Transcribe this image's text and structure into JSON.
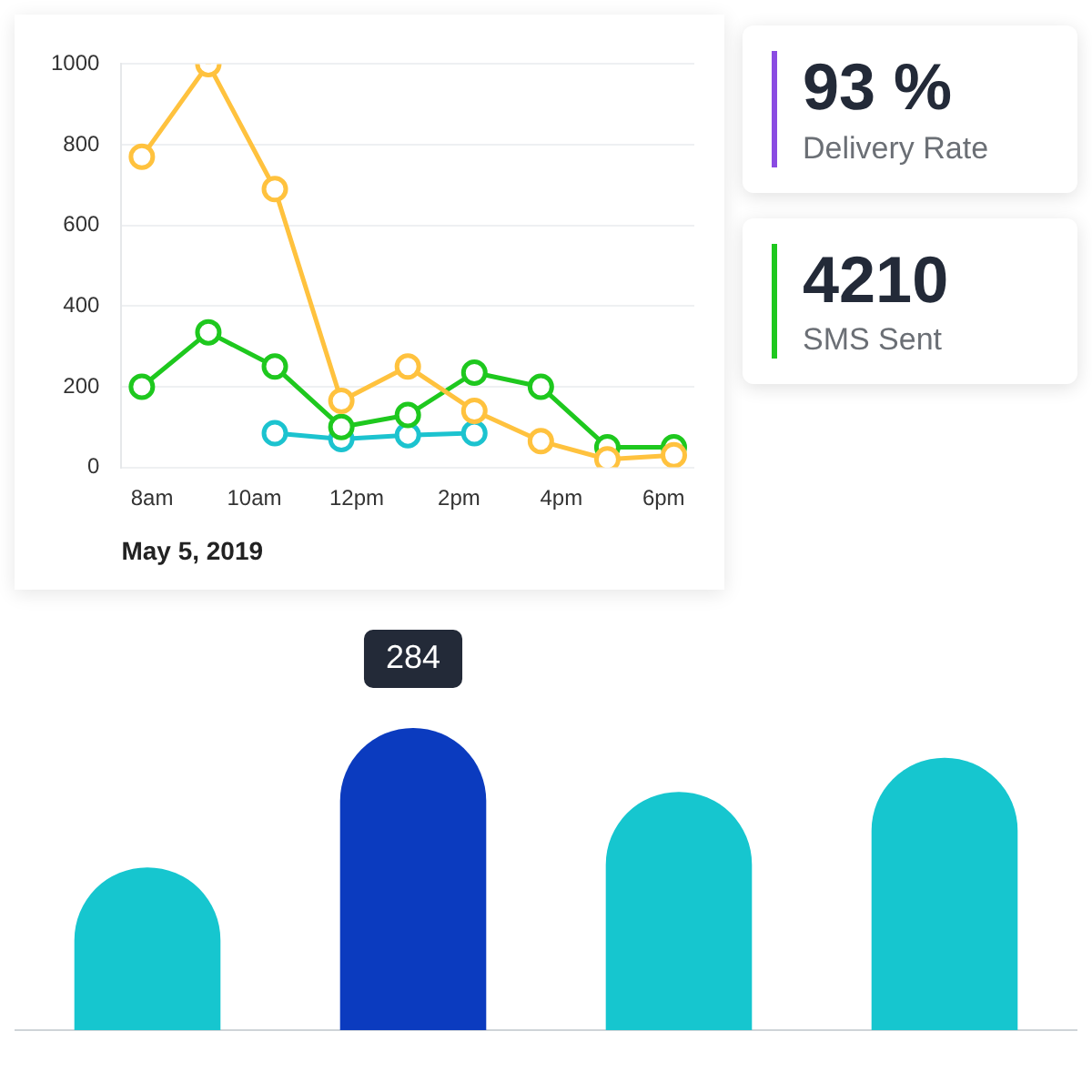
{
  "chart_data": [
    {
      "type": "line",
      "xlabel": "May 5, 2019",
      "marker": "circle",
      "grid": "y",
      "xlim": [
        "2019-05-05T07:24",
        "2019-05-05T18:36"
      ],
      "xticks": [
        {
          "value": "2019-05-05T08:00",
          "label": "8am"
        },
        {
          "value": "2019-05-05T10:00",
          "label": "10am"
        },
        {
          "value": "2019-05-05T12:00",
          "label": "12pm"
        },
        {
          "value": "2019-05-05T14:00",
          "label": "2pm"
        },
        {
          "value": "2019-05-05T16:00",
          "label": "4pm"
        },
        {
          "value": "2019-05-05T18:00",
          "label": "6pm"
        }
      ],
      "ylim": [
        0,
        1000
      ],
      "yticks": [
        0,
        200,
        400,
        600,
        800,
        1000
      ],
      "x": [
        "2019-05-05T07:48",
        "2019-05-05T09:06",
        "2019-05-05T10:24",
        "2019-05-05T11:42",
        "2019-05-05T13:00",
        "2019-05-05T14:18",
        "2019-05-05T15:36",
        "2019-05-05T16:54",
        "2019-05-05T18:12"
      ],
      "series": [
        {
          "color": "#ffc23e",
          "values": [
            770,
            1000,
            690,
            165,
            250,
            140,
            65,
            20,
            30
          ]
        },
        {
          "color": "#1ec81e",
          "values": [
            200,
            335,
            250,
            100,
            130,
            235,
            200,
            50,
            50
          ]
        },
        {
          "color": "#1cc3cf",
          "values": [
            null,
            null,
            85,
            70,
            80,
            85,
            null,
            null,
            null
          ]
        }
      ]
    },
    {
      "type": "bar",
      "categories": [
        null,
        null,
        null,
        null
      ],
      "values": [
        153,
        284,
        224,
        256
      ],
      "colors": [
        "#16c6cf",
        "#0b3bbf",
        "#16c6cf",
        "#16c6cf"
      ],
      "value_labels": [
        null,
        "284",
        null,
        null
      ]
    },
    {
      "type": "other",
      "title": "93 %",
      "subtitle": "Delivery Rate",
      "color": "#8a4be2"
    },
    {
      "type": "other",
      "title": "4210",
      "subtitle": "SMS Sent",
      "color": "#1ec81e"
    }
  ]
}
